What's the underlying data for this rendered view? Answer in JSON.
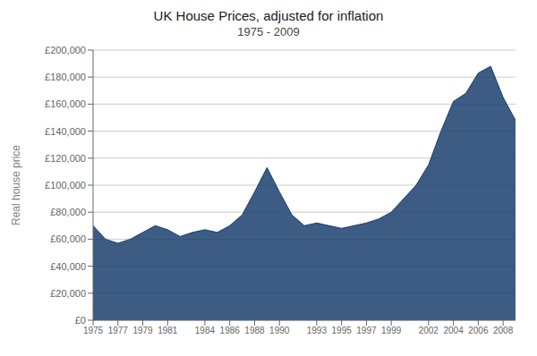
{
  "chart_data": {
    "type": "area",
    "title": "UK House Prices, adjusted for inflation",
    "subtitle": "1975 - 2009",
    "y_label": "Real house price",
    "x": [
      1975,
      1976,
      1977,
      1978,
      1979,
      1980,
      1981,
      1982,
      1983,
      1984,
      1985,
      1986,
      1987,
      1988,
      1989,
      1990,
      1991,
      1992,
      1993,
      1994,
      1995,
      1996,
      1997,
      1998,
      1999,
      2000,
      2001,
      2002,
      2003,
      2004,
      2005,
      2006,
      2007,
      2008,
      2009
    ],
    "values": [
      70000,
      60000,
      57000,
      60000,
      65000,
      70000,
      67000,
      62000,
      65000,
      67000,
      65000,
      70000,
      78000,
      95000,
      113000,
      95000,
      78000,
      70000,
      72000,
      70000,
      68000,
      70000,
      72000,
      75000,
      80000,
      90000,
      100000,
      115000,
      140000,
      162000,
      168000,
      183000,
      188000,
      165000,
      148000
    ],
    "color": "#1a3f6f",
    "xlim": [
      1975,
      2009
    ],
    "xticks": [
      1975,
      1977,
      1979,
      1981,
      1984,
      1986,
      1988,
      1990,
      1993,
      1995,
      1997,
      1999,
      2002,
      2004,
      2006,
      2008
    ],
    "ylim": [
      0,
      200000
    ],
    "yticks": [
      {
        "value": 0,
        "label": "£0"
      },
      {
        "value": 20000,
        "label": "£20,000"
      },
      {
        "value": 40000,
        "label": "£40,000"
      },
      {
        "value": 60000,
        "label": "£60,000"
      },
      {
        "value": 80000,
        "label": "£80,000"
      },
      {
        "value": 100000,
        "label": "£100,000"
      },
      {
        "value": 120000,
        "label": "£120,000"
      },
      {
        "value": 140000,
        "label": "£140,000"
      },
      {
        "value": 160000,
        "label": "£160,000"
      },
      {
        "value": 180000,
        "label": "£180,000"
      },
      {
        "value": 200000,
        "label": "£200,000"
      }
    ],
    "grid": true
  }
}
